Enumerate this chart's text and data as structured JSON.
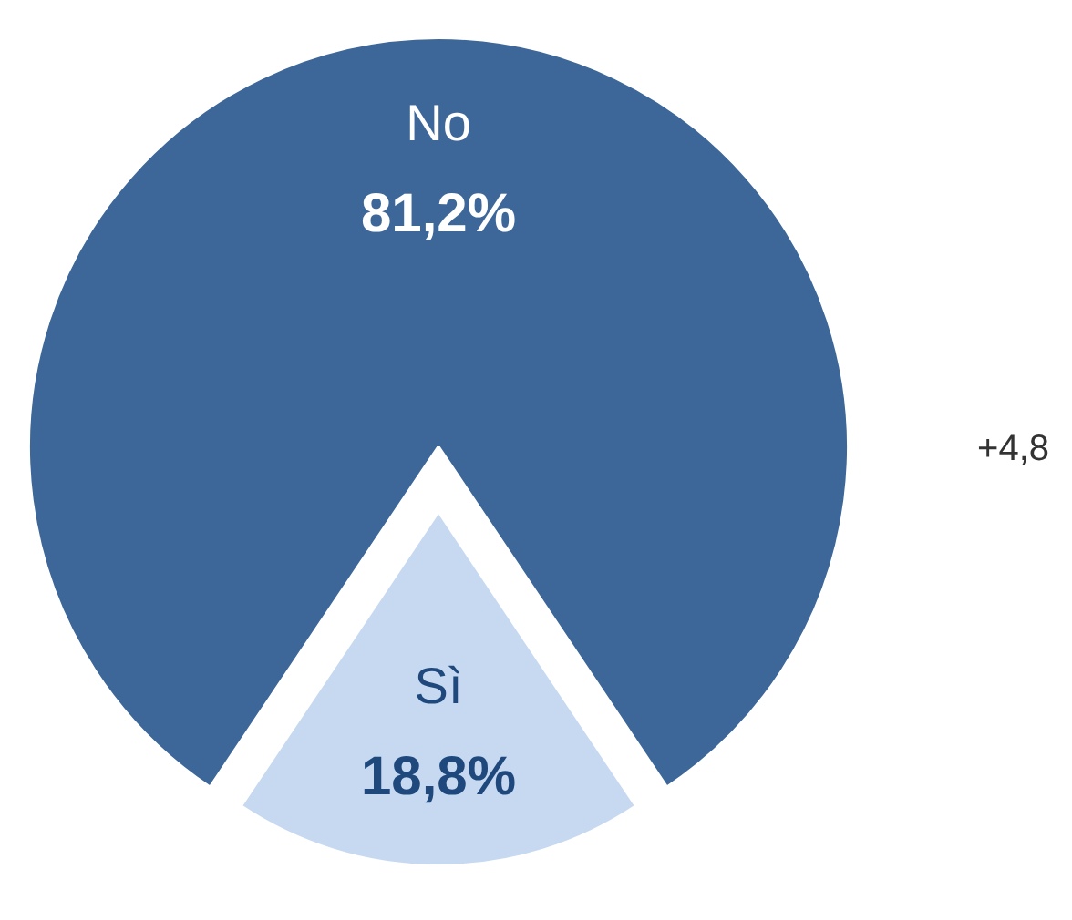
{
  "chart_data": {
    "type": "pie",
    "categories": [
      "No",
      "Sì"
    ],
    "values": [
      81.2,
      18.8
    ],
    "colors": [
      "#3d6799",
      "#c6d9f1"
    ],
    "value_labels": [
      "81,2%",
      "18,8%"
    ],
    "annotations": [
      "+4,8"
    ]
  }
}
